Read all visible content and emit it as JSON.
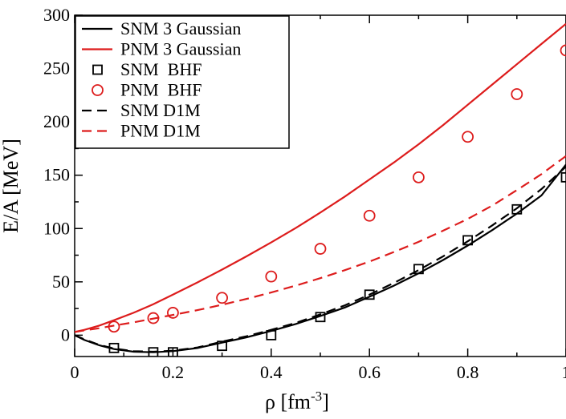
{
  "chart_data": {
    "type": "line",
    "xlabel": "ρ [fm",
    "xlabel_sup": "-3",
    "xlabel_end": "]",
    "ylabel": "E/A [MeV]",
    "xlim": [
      0,
      1
    ],
    "ylim": [
      -20,
      300
    ],
    "x_ticks": [
      0,
      0.2,
      0.4,
      0.6,
      0.8,
      1
    ],
    "x_tick_labels": [
      "0",
      "0.2",
      "0.4",
      "0.6",
      "0.8",
      "1"
    ],
    "y_ticks": [
      0,
      50,
      100,
      150,
      200,
      250,
      300
    ],
    "y_tick_labels": [
      "0",
      "50",
      "100",
      "150",
      "200",
      "250",
      "300"
    ],
    "grid": false,
    "legend_position": "top-left",
    "series": [
      {
        "name": "SNM 3 Gaussian",
        "style": "solid",
        "color": "#000000",
        "x": [
          0.0,
          0.02,
          0.05,
          0.08,
          0.12,
          0.16,
          0.2,
          0.25,
          0.3,
          0.35,
          0.4,
          0.45,
          0.5,
          0.55,
          0.6,
          0.65,
          0.7,
          0.75,
          0.8,
          0.85,
          0.9,
          0.95,
          1.0
        ],
        "y": [
          0,
          -4.5,
          -9.5,
          -13,
          -15.5,
          -16,
          -15,
          -12,
          -7,
          -2,
          4,
          10.5,
          18,
          26,
          36,
          46.5,
          58,
          70.5,
          84,
          98.5,
          114,
          131,
          160
        ]
      },
      {
        "name": "PNM 3 Gaussian",
        "style": "solid",
        "color": "#dd1c1c",
        "x": [
          0.0,
          0.02,
          0.05,
          0.08,
          0.12,
          0.16,
          0.2,
          0.25,
          0.3,
          0.35,
          0.4,
          0.45,
          0.5,
          0.55,
          0.6,
          0.65,
          0.7,
          0.75,
          0.8,
          0.85,
          0.9,
          0.95,
          1.0
        ],
        "y": [
          3,
          5,
          9,
          14,
          21,
          29,
          38,
          49.5,
          61.5,
          74,
          87,
          100.5,
          115,
          130,
          146,
          162,
          179,
          197,
          216,
          235,
          254,
          273,
          292
        ]
      },
      {
        "name": "SNM  BHF",
        "style": "marker-square",
        "color": "#000000",
        "x": [
          0.08,
          0.16,
          0.2,
          0.3,
          0.4,
          0.5,
          0.6,
          0.7,
          0.8,
          0.9,
          1.0
        ],
        "y": [
          -12,
          -16,
          -16,
          -10,
          0,
          17,
          38,
          62,
          89,
          118,
          148
        ]
      },
      {
        "name": "PNM  BHF",
        "style": "marker-circle",
        "color": "#dd1c1c",
        "x": [
          0.08,
          0.16,
          0.2,
          0.3,
          0.4,
          0.5,
          0.6,
          0.7,
          0.8,
          0.9,
          1.0
        ],
        "y": [
          8,
          16,
          21,
          35,
          55,
          81,
          112,
          148,
          186,
          226,
          267
        ]
      },
      {
        "name": "SNM D1M",
        "style": "dashed",
        "color": "#000000",
        "x": [
          0.0,
          0.02,
          0.05,
          0.08,
          0.12,
          0.16,
          0.2,
          0.25,
          0.3,
          0.35,
          0.4,
          0.45,
          0.5,
          0.55,
          0.6,
          0.65,
          0.7,
          0.75,
          0.8,
          0.85,
          0.9,
          0.95,
          1.0
        ],
        "y": [
          0,
          -4,
          -9,
          -12.5,
          -15,
          -15.5,
          -14.5,
          -11.5,
          -6,
          -1,
          5,
          11.5,
          19.5,
          28,
          38,
          49,
          61,
          74,
          88,
          103,
          119,
          137,
          158
        ]
      },
      {
        "name": "PNM D1M",
        "style": "dashed",
        "color": "#dd1c1c",
        "x": [
          0.0,
          0.02,
          0.05,
          0.08,
          0.12,
          0.16,
          0.2,
          0.25,
          0.3,
          0.35,
          0.4,
          0.45,
          0.5,
          0.55,
          0.6,
          0.65,
          0.7,
          0.75,
          0.8,
          0.85,
          0.9,
          0.95,
          1.0
        ],
        "y": [
          3,
          4.5,
          6.5,
          9,
          12,
          15.5,
          19,
          23.5,
          28.5,
          34,
          40,
          46.5,
          53.5,
          61,
          69,
          78,
          87.5,
          98,
          109,
          121.5,
          136,
          151,
          168
        ]
      }
    ]
  }
}
